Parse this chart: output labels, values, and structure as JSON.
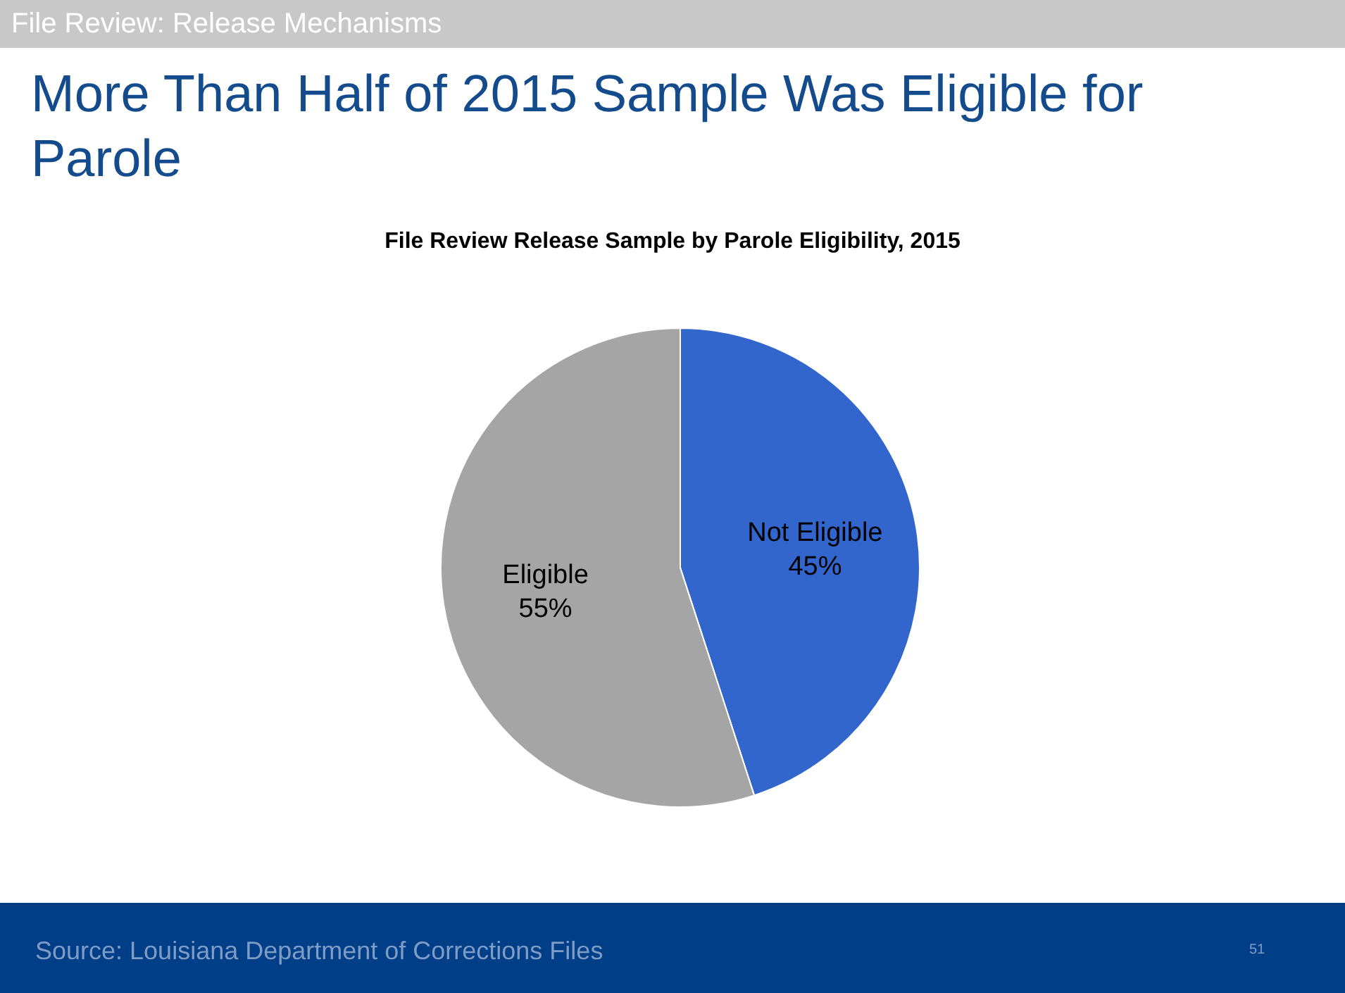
{
  "chart_data": {
    "type": "pie",
    "title": "More Than Half of 2015 Sample Was Eligible for Parole",
    "subtitle": "File Review Release Sample by Parole Eligibility, 2015",
    "categories": [
      "Not Eligible",
      "Eligible"
    ],
    "values": [
      45,
      55
    ],
    "colors": [
      "#3366cc",
      "#a5a5a5"
    ],
    "value_labels": [
      "45%",
      "55%"
    ],
    "legend": false,
    "annotations": [
      "File Review: Release Mechanisms",
      "Source: Louisiana Department of Corrections Files",
      "51"
    ]
  }
}
